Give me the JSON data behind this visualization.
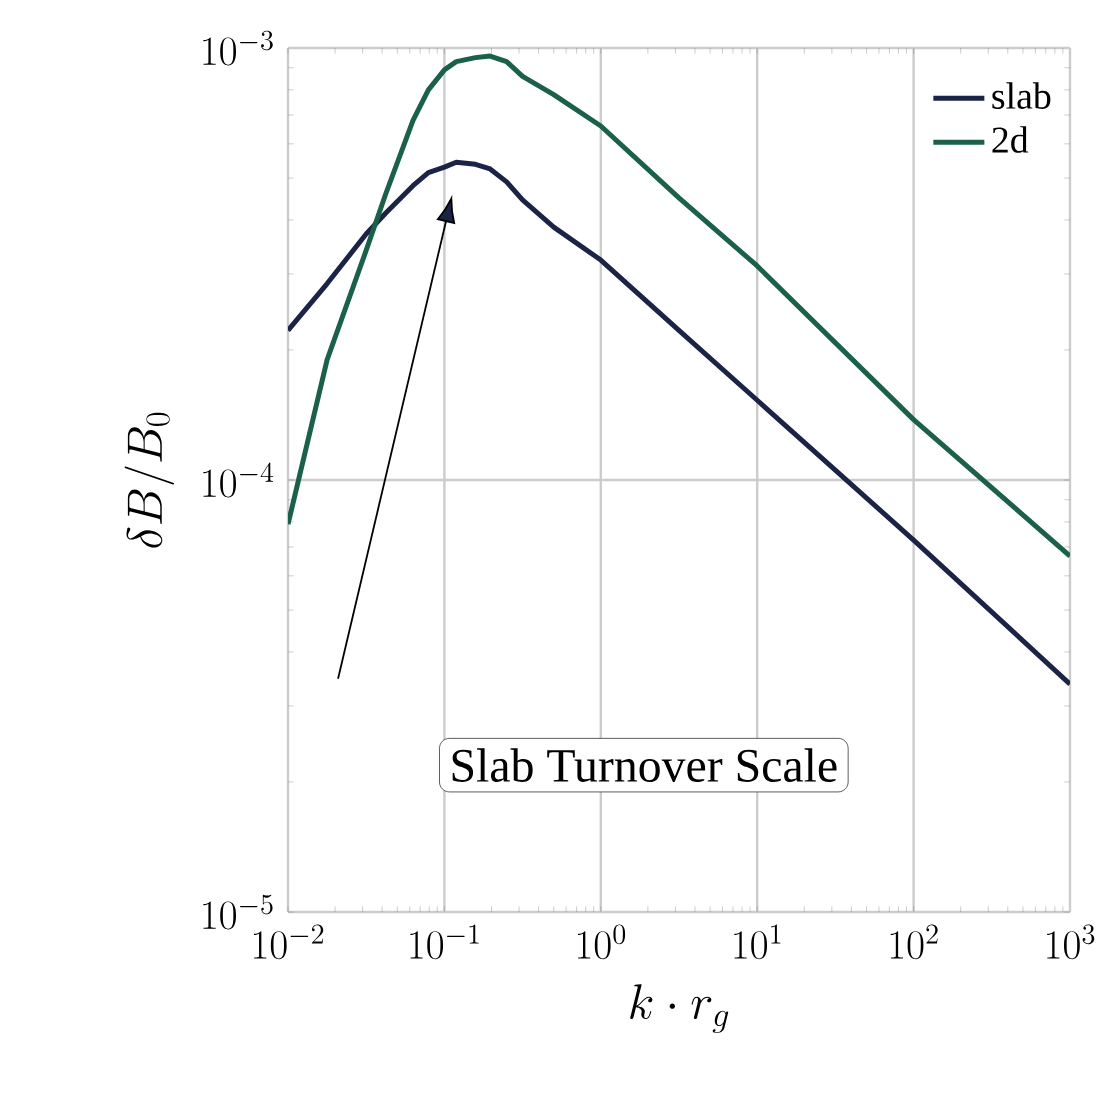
{
  "chart_data": {
    "type": "line",
    "xlabel": "k \\cdot r_g",
    "ylabel": "\\delta B/B_0",
    "x": [
      0.01,
      0.0178,
      0.0316,
      0.0422,
      0.063,
      0.079,
      0.1,
      0.119,
      0.158,
      0.196,
      0.25,
      0.316,
      0.5,
      1,
      3.16,
      10,
      100,
      1000
    ],
    "series": [
      {
        "name": "slab",
        "color": "#1b2447",
        "values": [
          0.000222,
          0.000285,
          0.000371,
          0.000415,
          0.00048,
          0.000515,
          0.00053,
          0.000544,
          0.000538,
          0.000525,
          0.00049,
          0.000445,
          0.000385,
          0.000323,
          0.000222,
          0.000153,
          7.26e-05,
          3.37e-05
        ]
      },
      {
        "name": "2d",
        "color": "#1a6147",
        "values": [
          7.9e-05,
          0.00019,
          0.00034,
          0.00046,
          0.00068,
          0.0008,
          0.00089,
          0.00093,
          0.00095,
          0.000958,
          0.00093,
          0.00086,
          0.00078,
          0.00066,
          0.00045,
          0.000313,
          0.000138,
          6.67e-05
        ]
      }
    ],
    "log": "xy",
    "grid": true,
    "legend": "top right",
    "line_style": "solid",
    "marker": "none",
    "xlim": [
      0.01,
      1000
    ],
    "ylim": [
      1e-05,
      0.001
    ],
    "xticks": [
      {
        "value": 0.01,
        "label": "10^{-2}"
      },
      {
        "value": 0.1,
        "label": "10^{-1}"
      },
      {
        "value": 1,
        "label": "10^{0}"
      },
      {
        "value": 10,
        "label": "10^{1}"
      },
      {
        "value": 100,
        "label": "10^{2}"
      },
      {
        "value": 1000,
        "label": "10^{3}"
      }
    ],
    "yticks": [
      {
        "value": 1e-05,
        "label": "10^{-5}"
      },
      {
        "value": 0.0001,
        "label": "10^{-4}"
      },
      {
        "value": 0.001,
        "label": "10^{-3}"
      }
    ],
    "annotations": [
      "Slab Turnover Scale"
    ]
  }
}
